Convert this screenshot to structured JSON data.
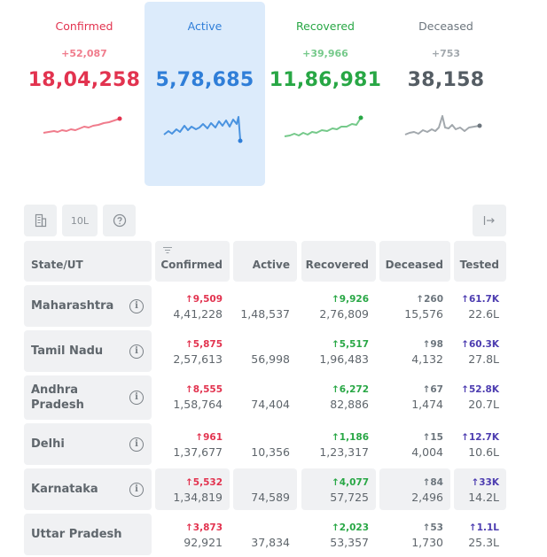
{
  "levels": [
    {
      "key": "confirmed",
      "label": "Confirmed",
      "delta": "+52,087",
      "total": "18,04,258",
      "color": "#e2334f"
    },
    {
      "key": "active",
      "label": "Active",
      "delta": "",
      "total": "5,78,685",
      "color": "#2f7ed8"
    },
    {
      "key": "recovered",
      "label": "Recovered",
      "delta": "+39,966",
      "total": "11,86,981",
      "color": "#28a745"
    },
    {
      "key": "deceased",
      "label": "Deceased",
      "delta": "+753",
      "total": "38,158",
      "color": "#6c757d"
    }
  ],
  "toolbar": {
    "b1_icon": "building-icon",
    "b2_label": "10L",
    "b3_icon": "help-icon",
    "b4_icon": "expand-icon"
  },
  "table": {
    "headers": [
      "State/UT",
      "Confirmed",
      "Active",
      "Recovered",
      "Deceased",
      "Tested"
    ],
    "rows": [
      {
        "state": "Maharashtra",
        "conf_d": "↑9,509",
        "conf": "4,41,228",
        "active": "1,48,537",
        "rec_d": "↑9,926",
        "rec": "2,76,809",
        "dec_d": "↑260",
        "dec": "15,576",
        "tst_d": "↑61.7K",
        "tst": "22.6L"
      },
      {
        "state": "Tamil Nadu",
        "conf_d": "↑5,875",
        "conf": "2,57,613",
        "active": "56,998",
        "rec_d": "↑5,517",
        "rec": "1,96,483",
        "dec_d": "↑98",
        "dec": "4,132",
        "tst_d": "↑60.3K",
        "tst": "27.8L"
      },
      {
        "state": "Andhra Pradesh",
        "conf_d": "↑8,555",
        "conf": "1,58,764",
        "active": "74,404",
        "rec_d": "↑6,272",
        "rec": "82,886",
        "dec_d": "↑67",
        "dec": "1,474",
        "tst_d": "↑52.8K",
        "tst": "20.7L"
      },
      {
        "state": "Delhi",
        "conf_d": "↑961",
        "conf": "1,37,677",
        "active": "10,356",
        "rec_d": "↑1,186",
        "rec": "1,23,317",
        "dec_d": "↑15",
        "dec": "4,004",
        "tst_d": "↑12.7K",
        "tst": "10.6L"
      },
      {
        "state": "Karnataka",
        "conf_d": "↑5,532",
        "conf": "1,34,819",
        "active": "74,589",
        "rec_d": "↑4,077",
        "rec": "57,725",
        "dec_d": "↑84",
        "dec": "2,496",
        "tst_d": "↑33K",
        "tst": "14.2L"
      },
      {
        "state": "Uttar Pradesh",
        "conf_d": "↑3,873",
        "conf": "92,921",
        "active": "37,834",
        "rec_d": "↑2,023",
        "rec": "53,357",
        "dec_d": "↑53",
        "dec": "1,730",
        "tst_d": "↑1.1L",
        "tst": "25.3L"
      }
    ]
  }
}
